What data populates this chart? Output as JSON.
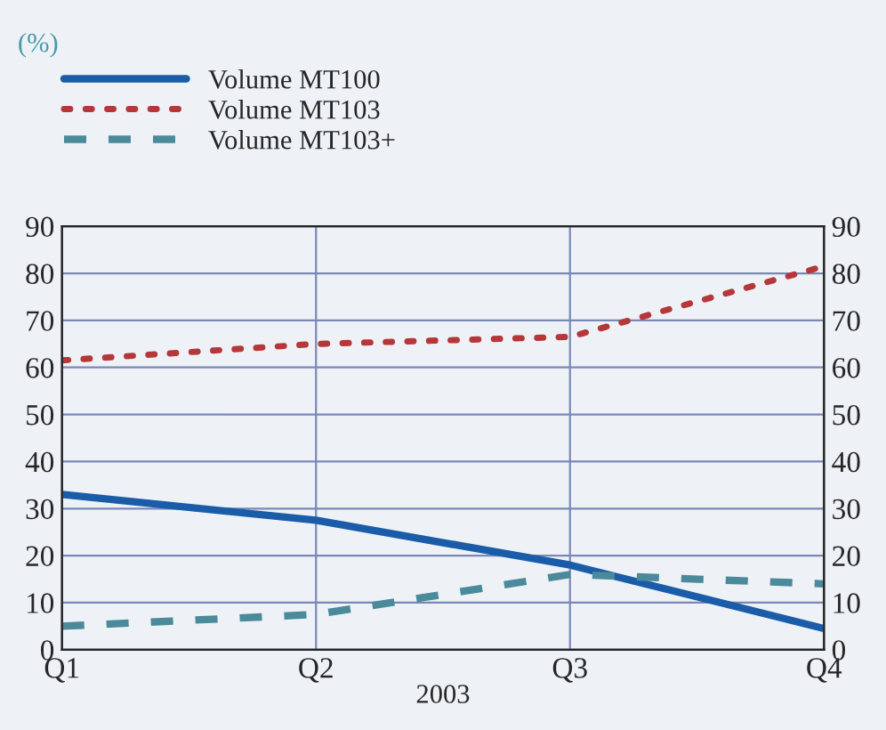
{
  "chart_data": {
    "type": "line",
    "title": "(%)",
    "xlabel": "2003",
    "categories": [
      "Q1",
      "Q2",
      "Q3",
      "Q4"
    ],
    "series": [
      {
        "name": "Volume MT100",
        "color": "#1a5ca8",
        "line_style": "solid",
        "values": [
          33,
          27.5,
          18,
          4.5
        ]
      },
      {
        "name": "Volume MT103",
        "color": "#b5373a",
        "line_style": "dotted",
        "values": [
          61.5,
          65,
          66.5,
          81.5
        ]
      },
      {
        "name": "Volume MT103+",
        "color": "#4a8a9a",
        "line_style": "dashed",
        "values": [
          5,
          7.5,
          16,
          14
        ]
      }
    ],
    "ylim": [
      0,
      90
    ],
    "yticks": [
      0,
      10,
      20,
      30,
      40,
      50,
      60,
      70,
      80,
      90
    ],
    "y2lim": [
      0,
      90
    ],
    "y2ticks": [
      0,
      10,
      20,
      30,
      40,
      50,
      60,
      70,
      80,
      90
    ],
    "grid": true,
    "legend": "top left",
    "marker": "none"
  }
}
